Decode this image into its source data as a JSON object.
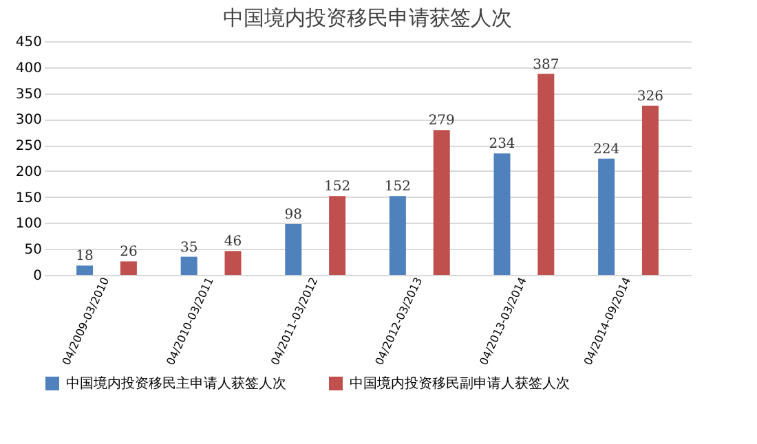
{
  "chart_data": {
    "type": "bar",
    "title": "中国境内投资移民申请获签人次",
    "categories": [
      "04/2009-03/2010",
      "04/2010-03/2011",
      "04/2011-03/2012",
      "04/2012-03/2013",
      "04/2013-03/2014",
      "04/2014-09/2014"
    ],
    "series": [
      {
        "name": "中国境内投资移民主申请人获签人次",
        "color": "#4f81bd",
        "values": [
          18,
          35,
          98,
          152,
          234,
          224
        ]
      },
      {
        "name": "中国境内投资移民副申请人获签人次",
        "color": "#c0504d",
        "values": [
          26,
          46,
          152,
          279,
          387,
          326
        ]
      }
    ],
    "ylim": [
      0,
      450
    ],
    "yticks": [
      0,
      50,
      100,
      150,
      200,
      250,
      300,
      350,
      400,
      450
    ],
    "grid": "y",
    "legend": "bottom",
    "data_labels": true
  }
}
